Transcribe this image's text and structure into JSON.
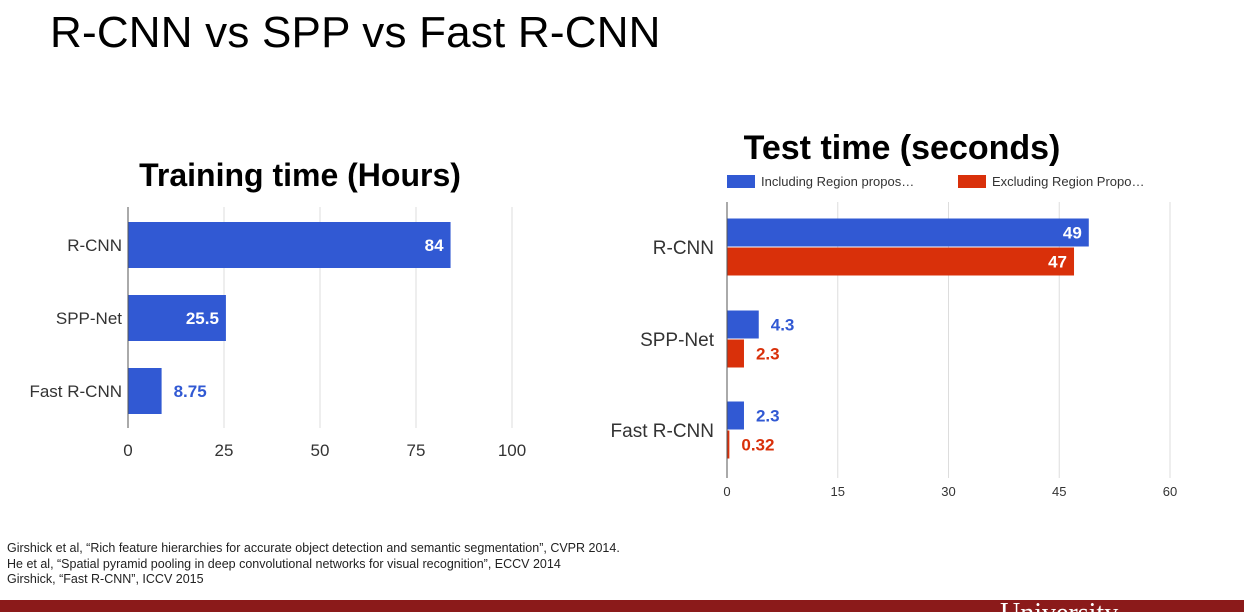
{
  "slide": {
    "title": "R-CNN vs SPP vs Fast R-CNN",
    "references": [
      "Girshick et al, “Rich feature hierarchies for accurate object detection and semantic segmentation”, CVPR 2014.",
      "He et al, “Spatial pyramid pooling in deep convolutional networks for visual recognition”, ECCV 2014",
      "Girshick, “Fast R-CNN”, ICCV 2015"
    ],
    "footer_text": "University"
  },
  "colors": {
    "blue": "#3159d3",
    "red": "#d9300a",
    "blue_label": "#3159d3",
    "red_label": "#d9300a",
    "grid": "#dddddd",
    "footer_bar": "#8b1a1a"
  },
  "chart_data": [
    {
      "type": "bar",
      "orientation": "horizontal",
      "title": "Training time (Hours)",
      "categories": [
        "R-CNN",
        "SPP-Net",
        "Fast R-CNN"
      ],
      "series": [
        {
          "values": [
            84,
            25.5,
            8.75
          ],
          "value_labels": [
            "84",
            "25.5",
            "8.75"
          ]
        }
      ],
      "xlim": [
        0,
        100
      ],
      "x_ticks": [
        0,
        25,
        50,
        75,
        100
      ],
      "grid": true,
      "legend": "none"
    },
    {
      "type": "bar",
      "orientation": "horizontal",
      "title": "Test time (seconds)",
      "categories": [
        "R-CNN",
        "SPP-Net",
        "Fast R-CNN"
      ],
      "series": [
        {
          "name": "Including Region propos…",
          "values": [
            49,
            4.3,
            2.3
          ],
          "value_labels": [
            "49",
            "4.3",
            "2.3"
          ]
        },
        {
          "name": "Excluding Region Propo…",
          "values": [
            47,
            2.3,
            0.32
          ],
          "value_labels": [
            "47",
            "2.3",
            "0.32"
          ]
        }
      ],
      "xlim": [
        0,
        60
      ],
      "x_ticks": [
        0,
        15,
        30,
        45,
        60
      ],
      "grid": true,
      "legend": "top"
    }
  ]
}
